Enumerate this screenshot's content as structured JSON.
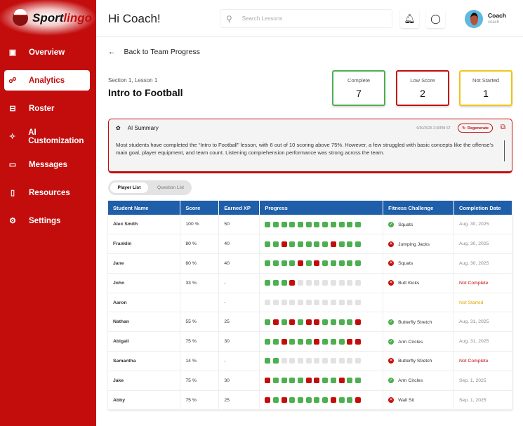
{
  "brand": {
    "part1": "Sport",
    "part2": "lingo"
  },
  "sidebar": {
    "items": [
      {
        "label": "Overview",
        "icon": "monitor-icon",
        "glyph": "▣"
      },
      {
        "label": "Analytics",
        "icon": "analytics-icon",
        "glyph": "☍",
        "active": true
      },
      {
        "label": "Roster",
        "icon": "roster-icon",
        "glyph": "⊟"
      },
      {
        "label": "AI Customization",
        "icon": "sparkle-icon",
        "glyph": "✧"
      },
      {
        "label": "Messages",
        "icon": "message-icon",
        "glyph": "▭"
      },
      {
        "label": "Resources",
        "icon": "book-icon",
        "glyph": "▯"
      },
      {
        "label": "Settings",
        "icon": "gear-icon",
        "glyph": "⚙"
      }
    ]
  },
  "header": {
    "greeting": "Hi Coach!",
    "search_placeholder": "Search Lessons",
    "user_name": "Coach",
    "user_role": "coach"
  },
  "back_label": "Back to Team Progress",
  "lesson": {
    "section": "Section 1, Lesson 1",
    "title": "Intro to Football"
  },
  "stats": [
    {
      "label": "Complete",
      "value": "7",
      "color": "#4caf50"
    },
    {
      "label": "Low Score",
      "value": "2",
      "color": "#c30d0d"
    },
    {
      "label": "Not Started",
      "value": "1",
      "color": "#f0c419"
    }
  ],
  "ai_summary": {
    "title": "AI Summary",
    "timestamp": "6/30/2025 2:30PM ST",
    "regenerate": "Regenerate",
    "text": "Most students have completed the “Intro to Football” lesson, with 6 out of 10 scoring above 75%. However, a few struggled with basic concepts like the offense's main goal, player equipment, and team count. Listening comprehension performance was strong across the team."
  },
  "tabs": {
    "player": "Player List",
    "question": "Question List"
  },
  "colors": {
    "brand": "#c30d0d",
    "header": "#1f5ea8",
    "correct": "#4caf50",
    "incorrect": "#c30d0d",
    "pending": "#e2e2e2"
  },
  "table": {
    "headers": [
      "Student Name",
      "Score",
      "Earned XP",
      "Progress",
      "Fitness Challenge",
      "Completion Date"
    ],
    "rows": [
      {
        "name": "Alex Smith",
        "score": "100 %",
        "xp": "50",
        "progress": "gggggggggggg",
        "fitness": "Squats",
        "fit_ok": true,
        "date": "Aug. 30, 2025",
        "status": "done"
      },
      {
        "name": "Franklin",
        "score": "80 %",
        "xp": "40",
        "progress": "ggrgggggrggg",
        "fitness": "Jumping Jacks",
        "fit_ok": false,
        "date": "Aug. 30, 2025",
        "status": "done"
      },
      {
        "name": "Jane",
        "score": "80 %",
        "xp": "40",
        "progress": "ggggrgrggggg",
        "fitness": "Squats",
        "fit_ok": false,
        "date": "Aug. 30, 2025",
        "status": "done"
      },
      {
        "name": "John",
        "score": "33 %",
        "xp": "-",
        "progress": "gggreeeeeeee",
        "fitness": "Butt Kicks",
        "fit_ok": false,
        "date": "Not Complete",
        "status": "incomplete"
      },
      {
        "name": "Aaron",
        "score": "",
        "xp": "-",
        "progress": "eeeeeeeeeeee",
        "fitness": "",
        "fit_ok": null,
        "date": "Not Started",
        "status": "notstarted"
      },
      {
        "name": "Nathan",
        "score": "55 %",
        "xp": "25",
        "progress": "grgrgrrggggr",
        "fitness": "Butterfly Stretch",
        "fit_ok": true,
        "date": "Aug. 31, 2025",
        "status": "done"
      },
      {
        "name": "Abigail",
        "score": "75 %",
        "xp": "30",
        "progress": "ggrgggrgggrr",
        "fitness": "Arm Circles",
        "fit_ok": true,
        "date": "Aug. 31, 2025",
        "status": "done"
      },
      {
        "name": "Samantha",
        "score": "14 %",
        "xp": "-",
        "progress": "ggeeeeeeeeee",
        "fitness": "Butterfly Stretch",
        "fit_ok": false,
        "date": "Not Complete",
        "status": "incomplete"
      },
      {
        "name": "Jake",
        "score": "75 %",
        "xp": "30",
        "progress": "rggggrrggrgg",
        "fitness": "Arm Circles",
        "fit_ok": true,
        "date": "Sep. 1, 2025",
        "status": "done"
      },
      {
        "name": "Abby",
        "score": "75 %",
        "xp": "25",
        "progress": "rgrgggggrggr",
        "fitness": "Wall Sit",
        "fit_ok": false,
        "date": "Sep. 1, 2025",
        "status": "done"
      }
    ]
  }
}
